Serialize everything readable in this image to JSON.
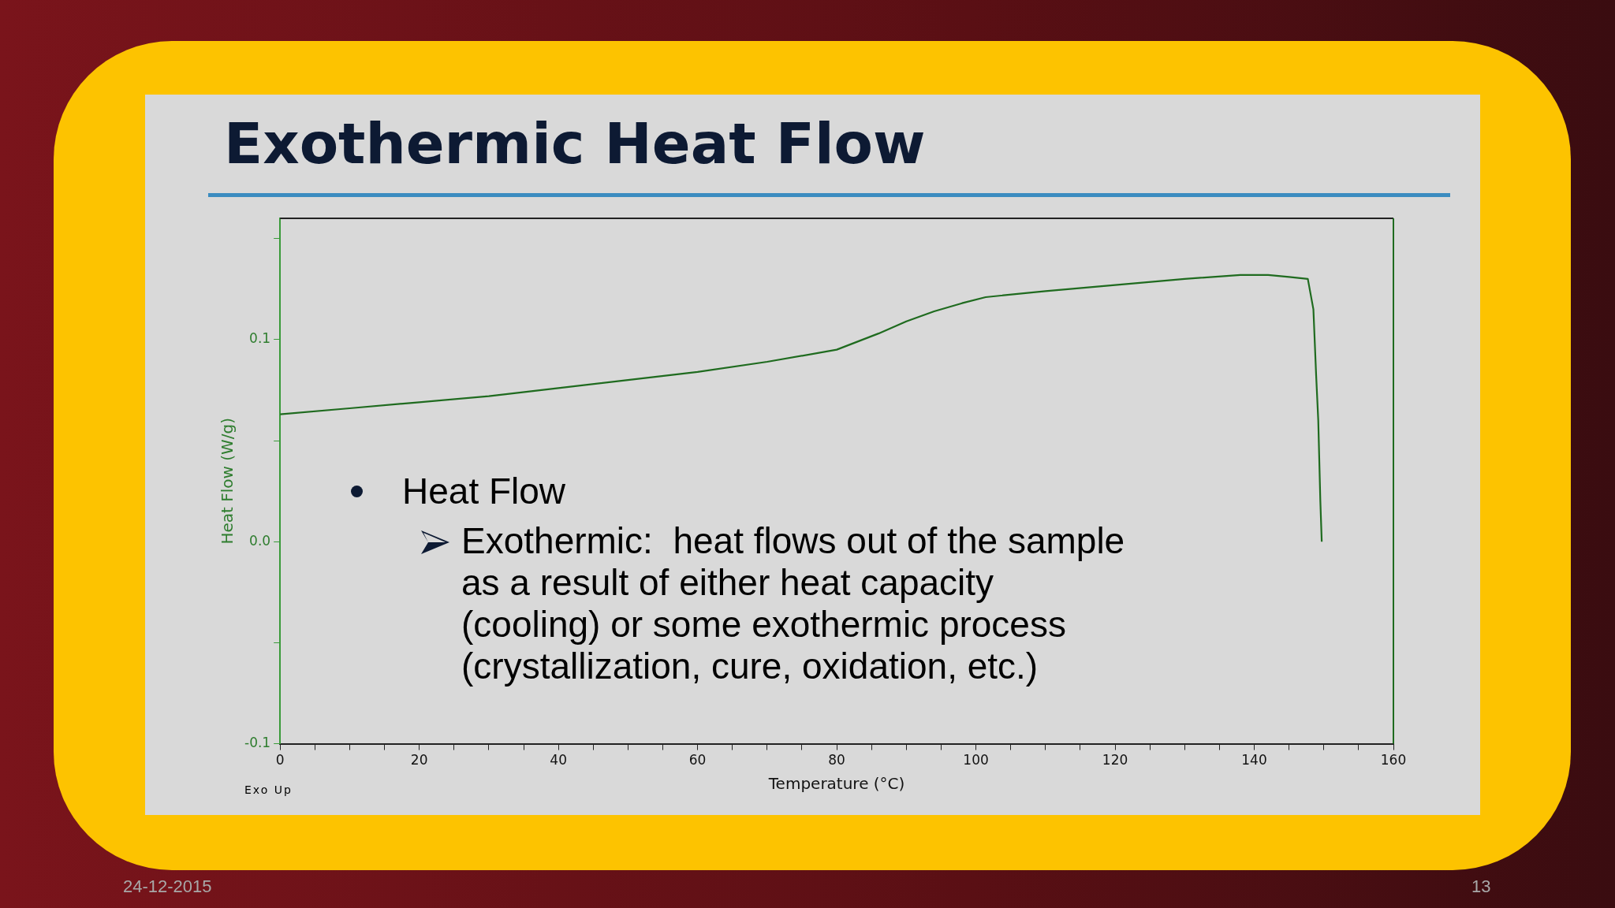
{
  "chart_data": {
    "type": "line",
    "title": "Exothermic Heat Flow",
    "xlabel": "Temperature (°C)",
    "ylabel": "Heat Flow (W/g)",
    "x": [
      0,
      10,
      20,
      30,
      40,
      50,
      60,
      70,
      80,
      86,
      90,
      94,
      98,
      101.4,
      110,
      120,
      130,
      138,
      142,
      145,
      147.7,
      148.5,
      148.9,
      149.2,
      149.5,
      149.7
    ],
    "series": [
      {
        "color": "#1f6b1f",
        "values": [
          0.063,
          0.066,
          0.069,
          0.072,
          0.076,
          0.08,
          0.084,
          0.089,
          0.095,
          0.103,
          0.109,
          0.114,
          0.118,
          0.121,
          0.124,
          0.127,
          0.13,
          0.132,
          0.132,
          0.131,
          0.13,
          0.115,
          0.082,
          0.06,
          0.02,
          0.0
        ]
      }
    ],
    "xlim": [
      0,
      160
    ],
    "xticks": [
      0,
      {
        "value": 5,
        "label": null
      },
      {
        "value": 10,
        "label": null
      },
      {
        "value": 15,
        "label": null
      },
      20,
      {
        "value": 25,
        "label": null
      },
      {
        "value": 30,
        "label": null
      },
      {
        "value": 35,
        "label": null
      },
      40,
      {
        "value": 45,
        "label": null
      },
      {
        "value": 50,
        "label": null
      },
      {
        "value": 55,
        "label": null
      },
      60,
      {
        "value": 65,
        "label": null
      },
      {
        "value": 70,
        "label": null
      },
      {
        "value": 75,
        "label": null
      },
      80,
      {
        "value": 85,
        "label": null
      },
      {
        "value": 90,
        "label": null
      },
      {
        "value": 95,
        "label": null
      },
      100,
      {
        "value": 105,
        "label": null
      },
      {
        "value": 110,
        "label": null
      },
      {
        "value": 115,
        "label": null
      },
      120,
      {
        "value": 125,
        "label": null
      },
      {
        "value": 130,
        "label": null
      },
      {
        "value": 135,
        "label": null
      },
      140,
      {
        "value": 145,
        "label": null
      },
      {
        "value": 150,
        "label": null
      },
      {
        "value": 155,
        "label": null
      },
      160
    ],
    "ylim": [
      -0.1,
      0.16
    ],
    "yticks": [
      {
        "value": -0.1,
        "label": "-0.1"
      },
      {
        "value": -0.05,
        "label": null
      },
      {
        "value": 0,
        "label": "0.0"
      },
      {
        "value": 0.05,
        "label": null
      },
      0.1,
      {
        "value": 0.15,
        "label": null
      }
    ],
    "grid": false,
    "legend": false,
    "marker": "none",
    "line_style": "solid",
    "annotations": [
      "Heat Flow",
      "Exothermic:  heat flows out of the sample\nas a result of either heat capacity\n(cooling) or some exothermic process\n(crystallization, cure, oxidation, etc.)",
      "Exo Up",
      "24-12-2015",
      "13"
    ]
  }
}
